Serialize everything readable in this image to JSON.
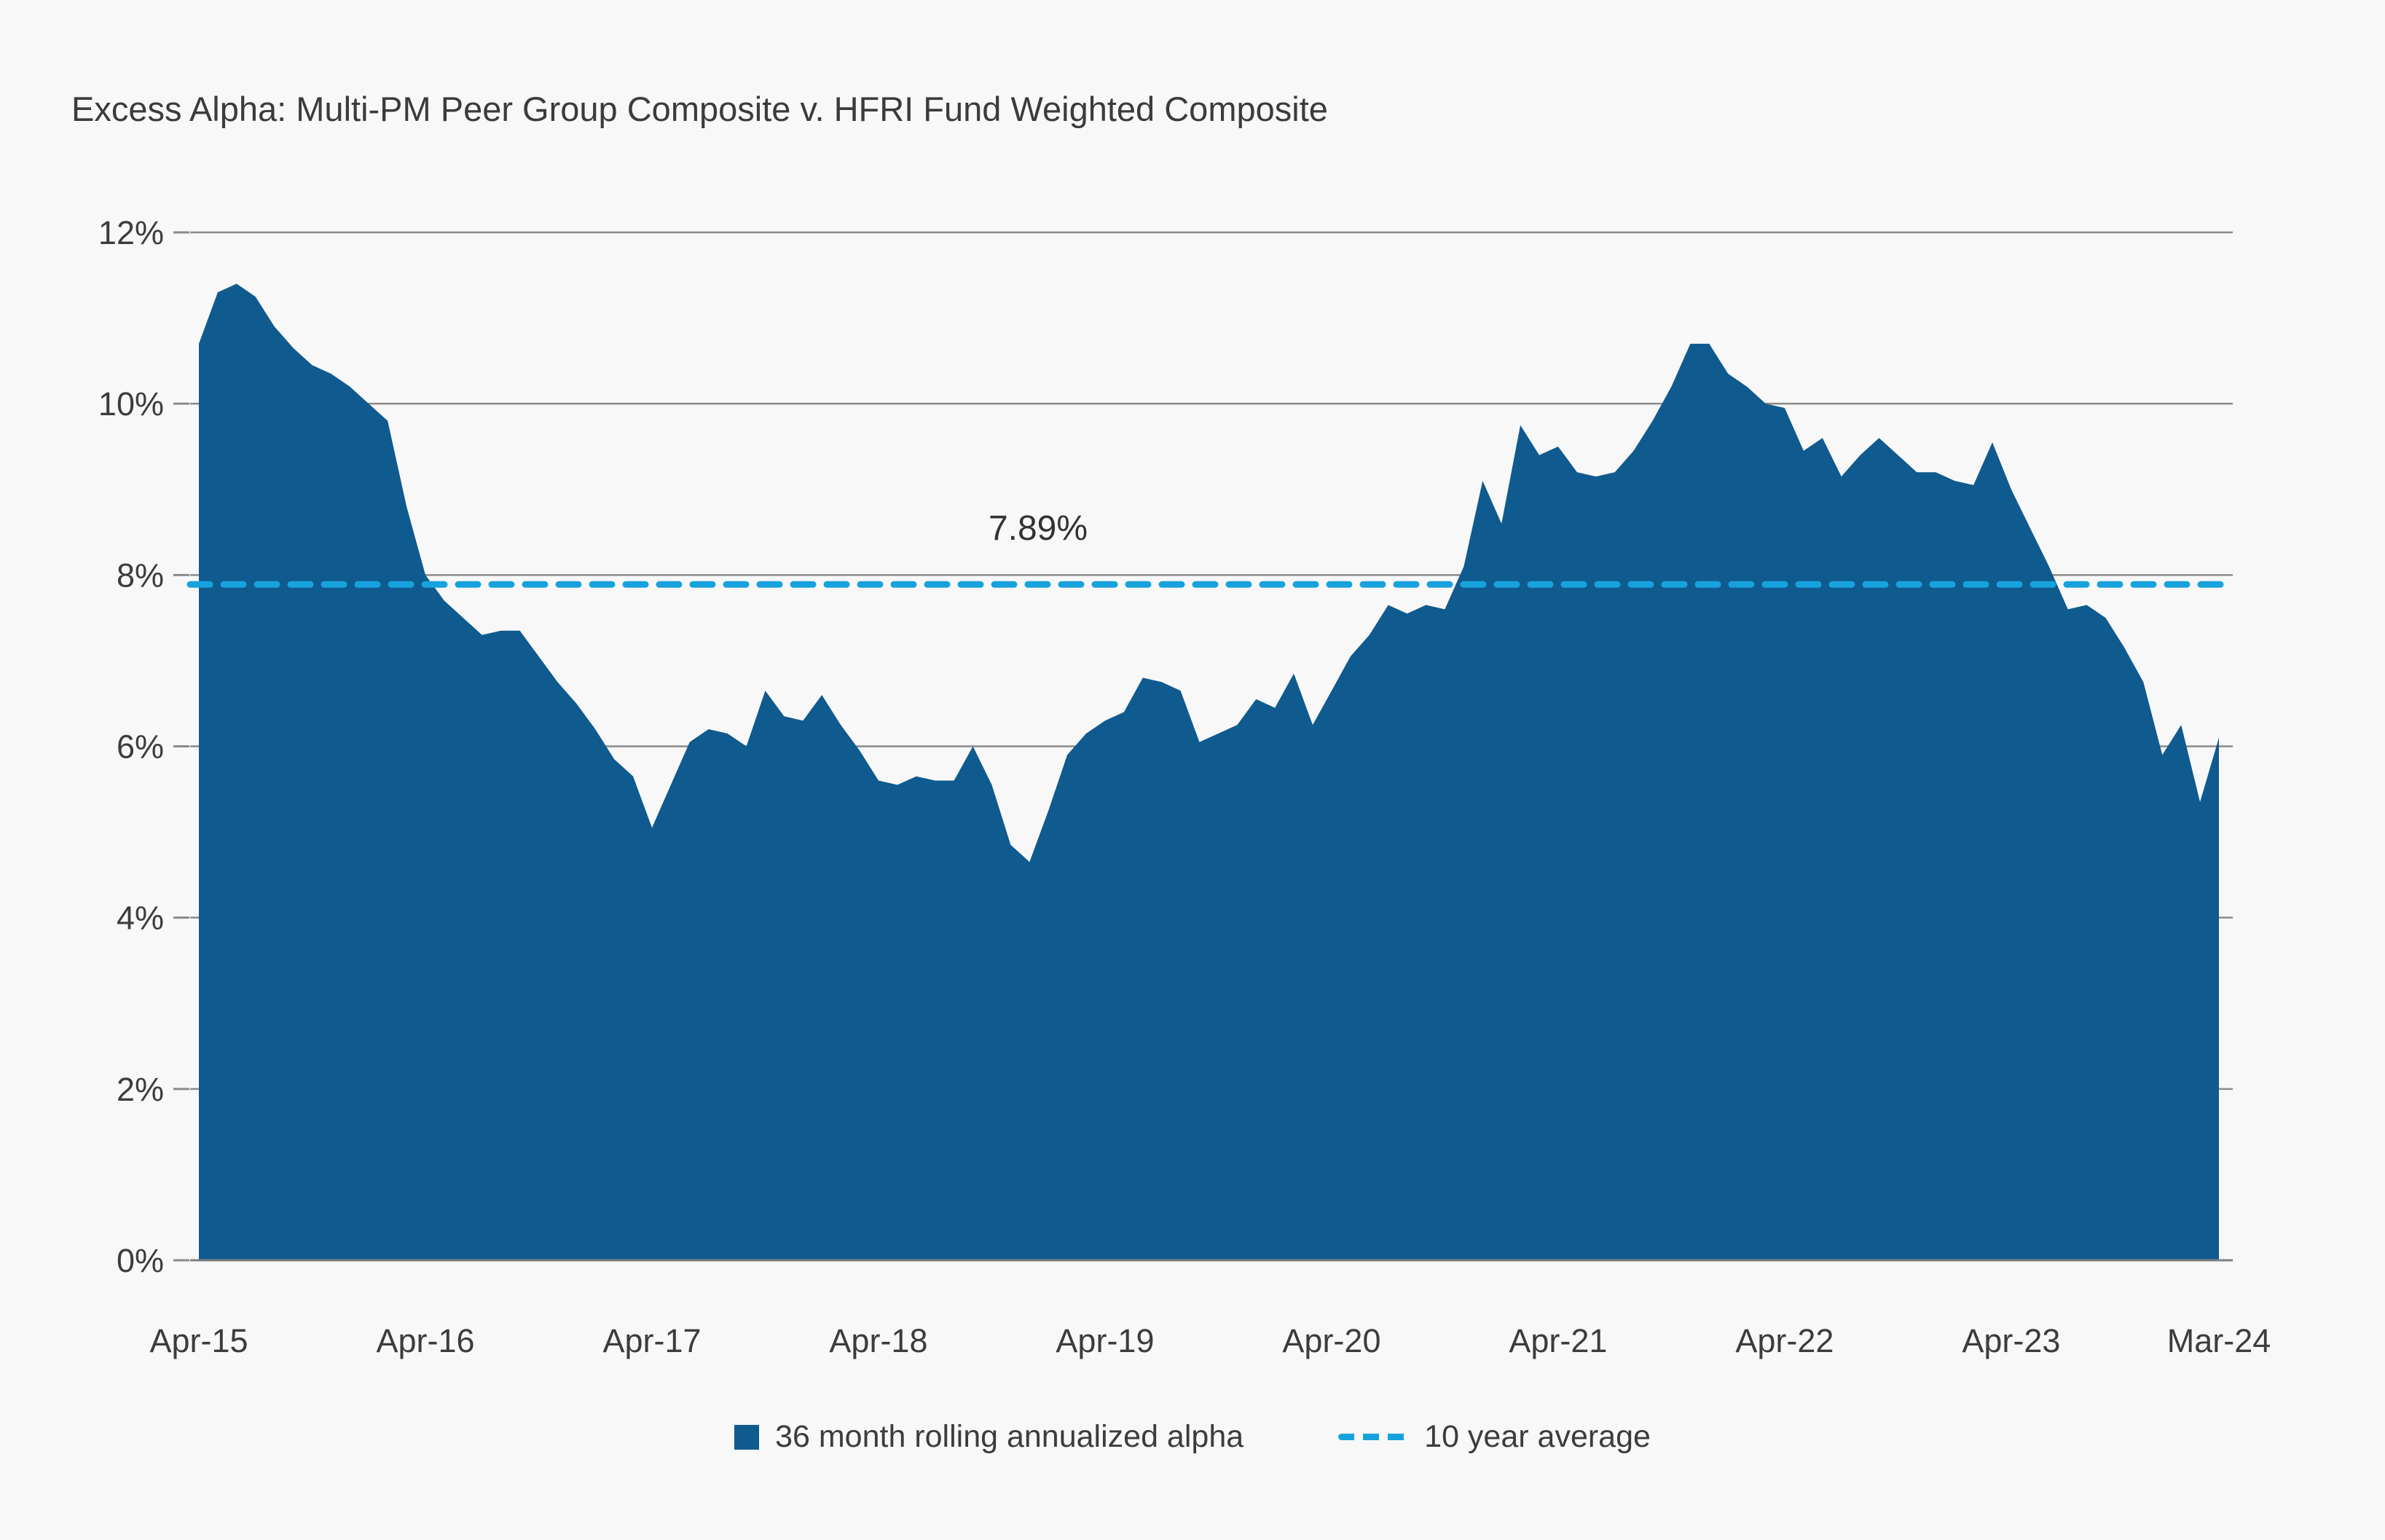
{
  "title": "Excess Alpha: Multi-PM Peer Group Composite v. HFRI Fund Weighted Composite",
  "annotation": "7.89%",
  "legend": {
    "series_label": "36 month rolling annualized alpha",
    "average_label": "10 year average"
  },
  "colors": {
    "area_fill": "#0f5a8e",
    "average_line": "#18a2dd",
    "gridline": "#8a8a8a",
    "axis_line": "#7f7f7f",
    "background": "#f8f8f8",
    "text": "#3c3c3c"
  },
  "chart_data": {
    "type": "area",
    "title": "Excess Alpha: Multi-PM Peer Group Composite v. HFRI Fund Weighted Composite",
    "xlabel": "",
    "ylabel": "",
    "ylim": [
      0,
      12
    ],
    "y_tick_step": 2,
    "y_tick_suffix": "%",
    "grid": "horizontal",
    "frequency": "monthly",
    "x_range": [
      "Apr-15",
      "Mar-24"
    ],
    "x_tick_labels": [
      {
        "label": "Apr-15",
        "index": 0
      },
      {
        "label": "Apr-16",
        "index": 12
      },
      {
        "label": "Apr-17",
        "index": 24
      },
      {
        "label": "Apr-18",
        "index": 36
      },
      {
        "label": "Apr-19",
        "index": 48
      },
      {
        "label": "Apr-20",
        "index": 60
      },
      {
        "label": "Apr-21",
        "index": 72
      },
      {
        "label": "Apr-22",
        "index": 84
      },
      {
        "label": "Apr-23",
        "index": 96
      },
      {
        "label": "Mar-24",
        "index": 107
      }
    ],
    "series": [
      {
        "name": "36 month rolling annualized alpha",
        "unit": "%",
        "values": [
          10.7,
          11.3,
          11.4,
          11.25,
          10.9,
          10.65,
          10.45,
          10.35,
          10.2,
          10.0,
          9.8,
          8.8,
          8.0,
          7.7,
          7.5,
          7.3,
          7.35,
          7.35,
          7.05,
          6.75,
          6.5,
          6.2,
          5.85,
          5.65,
          5.05,
          5.55,
          6.05,
          6.2,
          6.15,
          6.0,
          6.65,
          6.35,
          6.3,
          6.6,
          6.25,
          5.95,
          5.6,
          5.55,
          5.65,
          5.6,
          5.6,
          6.0,
          5.55,
          4.85,
          4.65,
          5.25,
          5.9,
          6.15,
          6.3,
          6.4,
          6.8,
          6.75,
          6.65,
          6.05,
          6.15,
          6.25,
          6.55,
          6.45,
          6.85,
          6.25,
          6.65,
          7.05,
          7.3,
          7.65,
          7.55,
          7.65,
          7.6,
          8.1,
          9.1,
          8.6,
          9.75,
          9.4,
          9.5,
          9.2,
          9.15,
          9.2,
          9.45,
          9.8,
          10.2,
          10.7,
          10.7,
          10.35,
          10.2,
          10.0,
          9.95,
          9.45,
          9.6,
          9.15,
          9.4,
          9.6,
          9.4,
          9.2,
          9.2,
          9.1,
          9.05,
          9.55,
          9.0,
          8.55,
          8.1,
          7.6,
          7.65,
          7.5,
          7.15,
          6.75,
          5.9,
          6.25,
          5.35,
          6.1
        ]
      }
    ],
    "average_line": {
      "name": "10 year average",
      "value": 7.89,
      "style": "dashed"
    },
    "legend_position": "bottom"
  }
}
